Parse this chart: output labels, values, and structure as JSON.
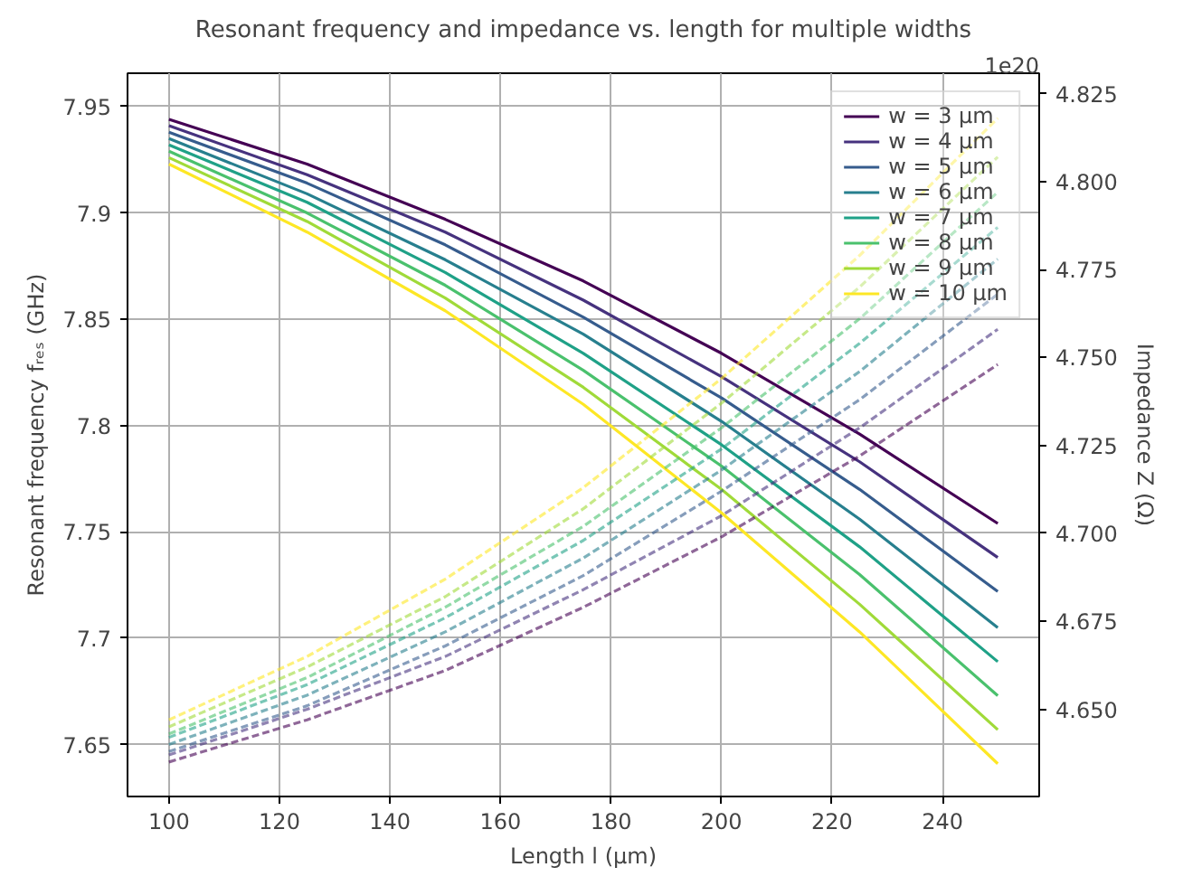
{
  "chart_data": {
    "type": "line",
    "title": "Resonant frequency and impedance vs. length for multiple widths",
    "xlabel": "Length l (µm)",
    "ylabel": "Resonant frequency fᵣₑₛ (GHz)",
    "y2label": "Impedance Z (Ω)",
    "x": [
      100,
      125,
      150,
      175,
      200,
      225,
      250
    ],
    "xlim": [
      92.5,
      257.5
    ],
    "xticks": [
      100,
      120,
      140,
      160,
      180,
      200,
      220,
      240
    ],
    "ylim": [
      7.6256,
      7.9657
    ],
    "yticks": [
      7.65,
      7.7,
      7.75,
      7.8,
      7.85,
      7.9,
      7.95
    ],
    "y2lim": [
      4.6252,
      4.8308
    ],
    "y2ticks": [
      {
        "value": 4.65,
        "label": "4.650"
      },
      {
        "value": 4.675,
        "label": "4.675"
      },
      {
        "value": 4.7,
        "label": "4.700"
      },
      {
        "value": 4.725,
        "label": "4.725"
      },
      {
        "value": 4.75,
        "label": "4.750"
      },
      {
        "value": 4.775,
        "label": "4.775"
      },
      {
        "value": 4.8,
        "label": "4.800"
      },
      {
        "value": 4.825,
        "label": "4.825"
      }
    ],
    "annotations": [
      "1e20"
    ],
    "grid": true,
    "legend": "top right",
    "series": [
      {
        "name": "w = 3 µm",
        "color": "#440154",
        "line_style": "solid",
        "values": [
          7.944,
          7.923,
          7.897,
          7.868,
          7.834,
          7.796,
          7.754
        ]
      },
      {
        "name": "w = 4 µm",
        "color": "#46327e",
        "line_style": "solid",
        "values": [
          7.941,
          7.918,
          7.891,
          7.859,
          7.823,
          7.783,
          7.738
        ]
      },
      {
        "name": "w = 5 µm",
        "color": "#365c8d",
        "line_style": "solid",
        "values": [
          7.938,
          7.914,
          7.885,
          7.851,
          7.813,
          7.77,
          7.722
        ]
      },
      {
        "name": "w = 6 µm",
        "color": "#277f8e",
        "line_style": "solid",
        "values": [
          7.935,
          7.909,
          7.878,
          7.843,
          7.802,
          7.756,
          7.705
        ]
      },
      {
        "name": "w = 7 µm",
        "color": "#1fa187",
        "line_style": "solid",
        "values": [
          7.932,
          7.905,
          7.872,
          7.834,
          7.791,
          7.743,
          7.689
        ]
      },
      {
        "name": "w = 8 µm",
        "color": "#4ac16d",
        "line_style": "solid",
        "values": [
          7.929,
          7.9,
          7.866,
          7.826,
          7.781,
          7.73,
          7.673
        ]
      },
      {
        "name": "w = 9 µm",
        "color": "#a0da39",
        "line_style": "solid",
        "values": [
          7.926,
          7.896,
          7.86,
          7.818,
          7.77,
          7.716,
          7.657
        ]
      },
      {
        "name": "w = 10 µm",
        "color": "#fde725",
        "line_style": "solid",
        "values": [
          7.923,
          7.891,
          7.854,
          7.81,
          7.759,
          7.703,
          7.641
        ]
      },
      {
        "color": "#440154",
        "line_style": "dashed",
        "axis": "y2",
        "values": [
          4.635,
          4.647,
          4.661,
          4.679,
          4.699,
          4.722,
          4.748
        ]
      },
      {
        "color": "#46327e",
        "line_style": "dashed",
        "axis": "y2",
        "values": [
          4.637,
          4.65,
          4.665,
          4.684,
          4.705,
          4.73,
          4.758
        ]
      },
      {
        "color": "#365c8d",
        "line_style": "dashed",
        "axis": "y2",
        "values": [
          4.638,
          4.651,
          4.668,
          4.688,
          4.712,
          4.738,
          4.768
        ]
      },
      {
        "color": "#277f8e",
        "line_style": "dashed",
        "axis": "y2",
        "values": [
          4.64,
          4.654,
          4.672,
          4.693,
          4.718,
          4.746,
          4.778
        ]
      },
      {
        "color": "#1fa187",
        "line_style": "dashed",
        "axis": "y2",
        "values": [
          4.642,
          4.657,
          4.676,
          4.698,
          4.724,
          4.754,
          4.787
        ]
      },
      {
        "color": "#4ac16d",
        "line_style": "dashed",
        "axis": "y2",
        "values": [
          4.643,
          4.659,
          4.679,
          4.702,
          4.73,
          4.761,
          4.797
        ]
      },
      {
        "color": "#a0da39",
        "line_style": "dashed",
        "axis": "y2",
        "values": [
          4.645,
          4.662,
          4.682,
          4.707,
          4.737,
          4.77,
          4.807
        ]
      },
      {
        "color": "#fde725",
        "line_style": "dashed",
        "axis": "y2",
        "values": [
          4.647,
          4.665,
          4.687,
          4.713,
          4.744,
          4.779,
          4.818
        ]
      }
    ]
  }
}
